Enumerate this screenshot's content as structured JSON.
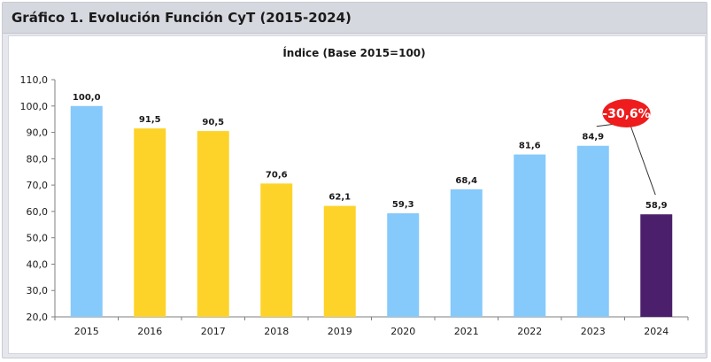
{
  "header": {
    "title": "Gráfico 1. Evolución Función CyT (2015-2024)"
  },
  "chart_data": {
    "type": "bar",
    "title": "Índice (Base 2015=100)",
    "xlabel": "",
    "ylabel": "",
    "ylim": [
      20,
      110
    ],
    "yticks": [
      "20,0",
      "30,0",
      "40,0",
      "50,0",
      "60,0",
      "70,0",
      "80,0",
      "90,0",
      "100,0",
      "110,0"
    ],
    "grid": false,
    "categories": [
      "2015",
      "2016",
      "2017",
      "2018",
      "2019",
      "2020",
      "2021",
      "2022",
      "2023",
      "2024"
    ],
    "values": [
      100.0,
      91.5,
      90.5,
      70.6,
      62.1,
      59.3,
      68.4,
      81.6,
      84.9,
      58.9
    ],
    "value_labels": [
      "100,0",
      "91,5",
      "90,5",
      "70,6",
      "62,1",
      "59,3",
      "68,4",
      "81,6",
      "84,9",
      "58,9"
    ],
    "colors": [
      "#86c9fb",
      "#fdd32a",
      "#fdd32a",
      "#fdd32a",
      "#fdd32a",
      "#86c9fb",
      "#86c9fb",
      "#86c9fb",
      "#86c9fb",
      "#4b1f6b"
    ],
    "annotation": {
      "text": "-30,6%",
      "color": "#ee1c1c",
      "from_category": "2023",
      "to_category": "2024"
    }
  }
}
